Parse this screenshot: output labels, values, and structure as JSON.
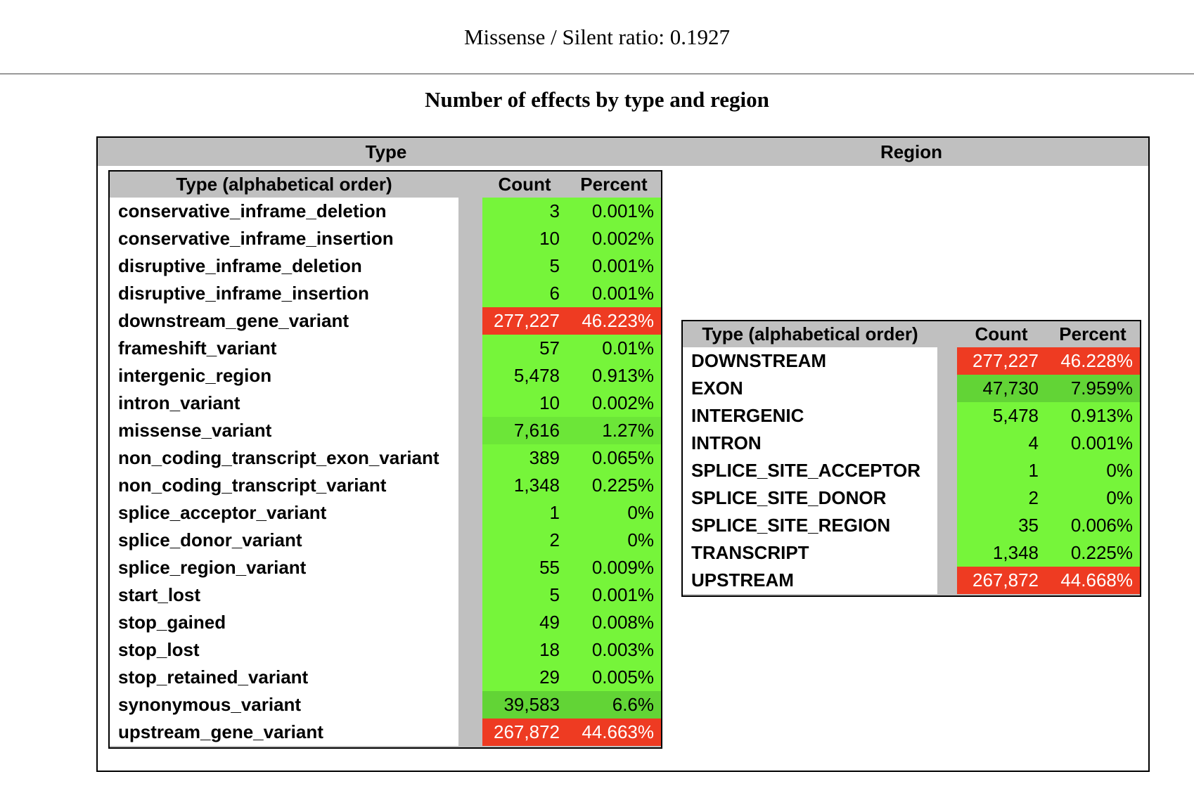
{
  "header": {
    "ratio_text": "Missense / Silent ratio: 0.1927",
    "title": "Number of effects by type and region"
  },
  "outer_table": {
    "type_heading": "Type",
    "region_heading": "Region"
  },
  "colors": {
    "green": "#76f53a",
    "mid_green": "#62d436",
    "red": "#ee3b22",
    "header_gray": "#c0c0c0"
  },
  "type_table": {
    "headers": {
      "name": "Type (alphabetical order)",
      "count": "Count",
      "percent": "Percent"
    },
    "rows": [
      {
        "name": "conservative_inframe_deletion",
        "count": "3",
        "percent": "0.001%",
        "level": "green"
      },
      {
        "name": "conservative_inframe_insertion",
        "count": "10",
        "percent": "0.002%",
        "level": "green"
      },
      {
        "name": "disruptive_inframe_deletion",
        "count": "5",
        "percent": "0.001%",
        "level": "green"
      },
      {
        "name": "disruptive_inframe_insertion",
        "count": "6",
        "percent": "0.001%",
        "level": "green"
      },
      {
        "name": "downstream_gene_variant",
        "count": "277,227",
        "percent": "46.223%",
        "level": "red"
      },
      {
        "name": "frameshift_variant",
        "count": "57",
        "percent": "0.01%",
        "level": "green"
      },
      {
        "name": "intergenic_region",
        "count": "5,478",
        "percent": "0.913%",
        "level": "green"
      },
      {
        "name": "intron_variant",
        "count": "10",
        "percent": "0.002%",
        "level": "green"
      },
      {
        "name": "missense_variant",
        "count": "7,616",
        "percent": "1.27%",
        "level": "light_mid"
      },
      {
        "name": "non_coding_transcript_exon_variant",
        "count": "389",
        "percent": "0.065%",
        "level": "green"
      },
      {
        "name": "non_coding_transcript_variant",
        "count": "1,348",
        "percent": "0.225%",
        "level": "green"
      },
      {
        "name": "splice_acceptor_variant",
        "count": "1",
        "percent": "0%",
        "level": "green"
      },
      {
        "name": "splice_donor_variant",
        "count": "2",
        "percent": "0%",
        "level": "green"
      },
      {
        "name": "splice_region_variant",
        "count": "55",
        "percent": "0.009%",
        "level": "green"
      },
      {
        "name": "start_lost",
        "count": "5",
        "percent": "0.001%",
        "level": "green"
      },
      {
        "name": "stop_gained",
        "count": "49",
        "percent": "0.008%",
        "level": "green"
      },
      {
        "name": "stop_lost",
        "count": "18",
        "percent": "0.003%",
        "level": "green"
      },
      {
        "name": "stop_retained_variant",
        "count": "29",
        "percent": "0.005%",
        "level": "green"
      },
      {
        "name": "synonymous_variant",
        "count": "39,583",
        "percent": "6.6%",
        "level": "mid"
      },
      {
        "name": "upstream_gene_variant",
        "count": "267,872",
        "percent": "44.663%",
        "level": "red"
      }
    ]
  },
  "region_table": {
    "headers": {
      "name": "Type (alphabetical order)",
      "count": "Count",
      "percent": "Percent"
    },
    "rows": [
      {
        "name": "DOWNSTREAM",
        "count": "277,227",
        "percent": "46.228%",
        "level": "red"
      },
      {
        "name": "EXON",
        "count": "47,730",
        "percent": "7.959%",
        "level": "mid"
      },
      {
        "name": "INTERGENIC",
        "count": "5,478",
        "percent": "0.913%",
        "level": "green"
      },
      {
        "name": "INTRON",
        "count": "4",
        "percent": "0.001%",
        "level": "green"
      },
      {
        "name": "SPLICE_SITE_ACCEPTOR",
        "count": "1",
        "percent": "0%",
        "level": "green"
      },
      {
        "name": "SPLICE_SITE_DONOR",
        "count": "2",
        "percent": "0%",
        "level": "green"
      },
      {
        "name": "SPLICE_SITE_REGION",
        "count": "35",
        "percent": "0.006%",
        "level": "green"
      },
      {
        "name": "TRANSCRIPT",
        "count": "1,348",
        "percent": "0.225%",
        "level": "green"
      },
      {
        "name": "UPSTREAM",
        "count": "267,872",
        "percent": "44.668%",
        "level": "red"
      }
    ]
  }
}
